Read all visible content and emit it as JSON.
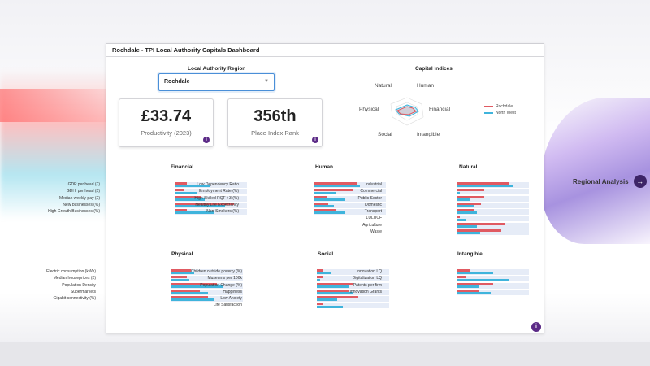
{
  "window": {
    "title": "Rochdale - TPI Local Authority Capitals Dashboard"
  },
  "region": {
    "label": "Local Authority Region",
    "selected": "Rochdale"
  },
  "kpis": [
    {
      "value": "£33.74",
      "label": "Productivity (2023)"
    },
    {
      "value": "356th",
      "label": "Place Index Rank"
    }
  ],
  "capital_indices": {
    "title": "Capital Indices",
    "axes": [
      "Natural",
      "Human",
      "Financial",
      "Intangible",
      "Social",
      "Physical"
    ],
    "legend": [
      "Rochdale",
      "North West"
    ]
  },
  "colors": {
    "series1": "#e05a62",
    "series2": "#3fb4dc",
    "accent": "#5b2a86"
  },
  "icons": {
    "info": "info-icon",
    "chevron": "chevron-down-icon",
    "arrow": "arrow-right-icon"
  },
  "panels": [
    {
      "title": "Financial",
      "rows": [
        {
          "label": "GDP per head (£)",
          "a": 0.17,
          "b": 0.48
        },
        {
          "label": "GDHI per head (£)",
          "a": 0.14,
          "b": 0.3
        },
        {
          "label": "Median weekly pay (£)",
          "a": 0.36,
          "b": 0.42
        },
        {
          "label": "New businesses (%)",
          "a": 0.82,
          "b": 0.7
        },
        {
          "label": "High Growth Businesses (%)",
          "a": 0.17,
          "b": 0.55
        }
      ]
    },
    {
      "title": "Human",
      "rows": [
        {
          "label": "Low Dependency Ratio",
          "a": 0.6,
          "b": 0.64
        },
        {
          "label": "Employment Rate (%)",
          "a": 0.55,
          "b": 0.3
        },
        {
          "label": "High Skilled RQF +3 (%)",
          "a": 0.18,
          "b": 0.44
        },
        {
          "label": "Healthy Life Expectancy",
          "a": 0.2,
          "b": 0.28
        },
        {
          "label": "Non-Smokers (%)",
          "a": 0.3,
          "b": 0.44
        }
      ]
    },
    {
      "title": "Natural",
      "rows": [
        {
          "label": "Industrial",
          "a": 0.72,
          "b": 0.78
        },
        {
          "label": "Commercial",
          "a": 0.38,
          "b": 0.04
        },
        {
          "label": "Public Sector",
          "a": 0.38,
          "b": 0.18
        },
        {
          "label": "Domestic",
          "a": 0.34,
          "b": 0.24
        },
        {
          "label": "Transport",
          "a": 0.25,
          "b": 0.28
        },
        {
          "label": "LULUCF",
          "a": 0.05,
          "b": 0.14
        },
        {
          "label": "Agriculture",
          "a": 0.67,
          "b": 0.28
        },
        {
          "label": "Waste",
          "a": 0.62,
          "b": 0.33
        }
      ]
    },
    {
      "title": "Physical",
      "rows": [
        {
          "label": "Electric consumption (kWh)",
          "a": 0.28,
          "b": 0.33
        },
        {
          "label": "Median houseprices (£)",
          "a": 0.22,
          "b": 0.26
        },
        {
          "label": "Population Density",
          "a": 0.64,
          "b": 0.72
        },
        {
          "label": "Supermarkets",
          "a": 0.4,
          "b": 0.52
        },
        {
          "label": "Gigabit connectivity (%)",
          "a": 0.52,
          "b": 0.6
        }
      ]
    },
    {
      "title": "Social",
      "rows": [
        {
          "label": "Children outside poverty (%)",
          "a": 0.09,
          "b": 0.2
        },
        {
          "label": "Museums per 100k",
          "a": 0.09,
          "b": 0.05
        },
        {
          "label": "Population Change (%)",
          "a": 0.5,
          "b": 0.44
        },
        {
          "label": "Happiness",
          "a": 0.44,
          "b": 0.5
        },
        {
          "label": "Low Anxiety",
          "a": 0.57,
          "b": 0.28
        },
        {
          "label": "Life Satisfaction",
          "a": 0.09,
          "b": 0.36
        }
      ]
    },
    {
      "title": "Intangible",
      "rows": [
        {
          "label": "Innovation LQ",
          "a": 0.19,
          "b": 0.5
        },
        {
          "label": "Digitalization LQ",
          "a": 0.12,
          "b": 0.73
        },
        {
          "label": "Patents per firm",
          "a": 0.5,
          "b": 0.32
        },
        {
          "label": "Innovation Grants",
          "a": 0.31,
          "b": 0.47
        }
      ]
    }
  ],
  "regional": {
    "label": "Regional Analysis"
  },
  "info_symbol": "i",
  "chevron_symbol": "▼",
  "arrow_symbol": "→"
}
